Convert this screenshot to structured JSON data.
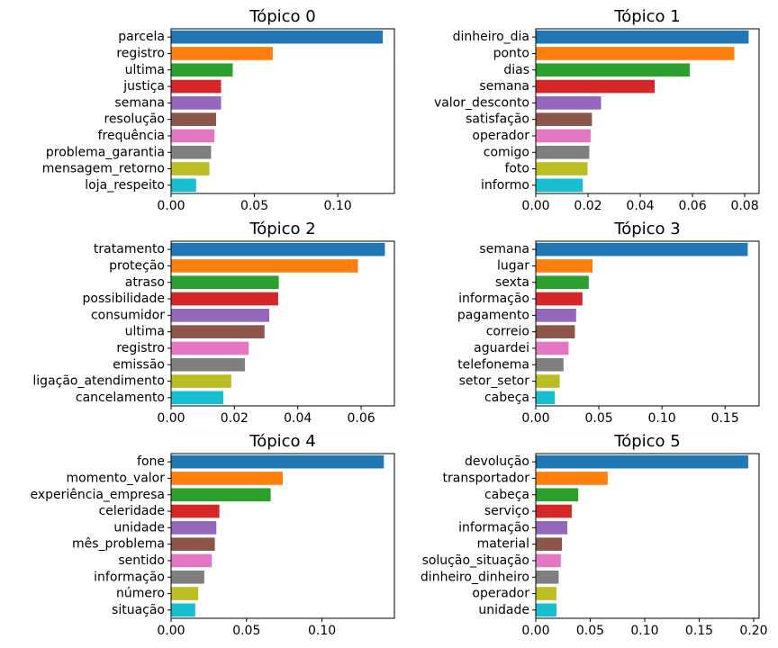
{
  "chart_data": [
    {
      "type": "bar",
      "orientation": "horizontal",
      "title": "Tópico 0",
      "categories": [
        "parcela",
        "registro",
        "ultima",
        "justiça",
        "semana",
        "resolução",
        "frequência",
        "problema_garantia",
        "mensagem_retorno",
        "loja_respeito"
      ],
      "values": [
        0.127,
        0.061,
        0.037,
        0.03,
        0.03,
        0.027,
        0.026,
        0.024,
        0.023,
        0.015
      ],
      "xlim": [
        0,
        0.134
      ],
      "xticks": [
        0.0,
        0.05,
        0.1
      ],
      "xtick_labels": [
        "0.00",
        "0.05",
        "0.10"
      ]
    },
    {
      "type": "bar",
      "orientation": "horizontal",
      "title": "Tópico 1",
      "categories": [
        "dinheiro_dia",
        "ponto",
        "dias",
        "semana",
        "valor_desconto",
        "satisfação",
        "operador",
        "comigo",
        "foto",
        "informo"
      ],
      "values": [
        0.0815,
        0.076,
        0.059,
        0.0455,
        0.025,
        0.0215,
        0.021,
        0.0205,
        0.0198,
        0.018
      ],
      "xlim": [
        0,
        0.0855
      ],
      "xticks": [
        0.0,
        0.02,
        0.04,
        0.06,
        0.08
      ],
      "xtick_labels": [
        "0.00",
        "0.02",
        "0.04",
        "0.06",
        "0.08"
      ]
    },
    {
      "type": "bar",
      "orientation": "horizontal",
      "title": "Tópico 2",
      "categories": [
        "tratamento",
        "proteção",
        "atraso",
        "possibilidade",
        "consumidor",
        "ultima",
        "registro",
        "emissão",
        "ligação_atendimento",
        "cancelamento"
      ],
      "values": [
        0.0675,
        0.059,
        0.034,
        0.0338,
        0.031,
        0.0295,
        0.0245,
        0.0233,
        0.019,
        0.0165
      ],
      "xlim": [
        0,
        0.0705
      ],
      "xticks": [
        0.0,
        0.02,
        0.04,
        0.06
      ],
      "xtick_labels": [
        "0.00",
        "0.02",
        "0.04",
        "0.06"
      ]
    },
    {
      "type": "bar",
      "orientation": "horizontal",
      "title": "Tópico 3",
      "categories": [
        "semana",
        "lugar",
        "sexta",
        "informação",
        "pagamento",
        "correio",
        "aguardei",
        "telefonema",
        "setor_setor",
        "cabeça"
      ],
      "values": [
        0.168,
        0.045,
        0.042,
        0.037,
        0.032,
        0.031,
        0.026,
        0.022,
        0.019,
        0.015
      ],
      "xlim": [
        0,
        0.177
      ],
      "xticks": [
        0.0,
        0.05,
        0.1,
        0.15
      ],
      "xtick_labels": [
        "0.00",
        "0.05",
        "0.10",
        "0.15"
      ]
    },
    {
      "type": "bar",
      "orientation": "horizontal",
      "title": "Tópico 4",
      "categories": [
        "fone",
        "momento_valor",
        "experiência_empresa",
        "celeridade",
        "unidade",
        "mês_problema",
        "sentido",
        "informação",
        "número",
        "situação"
      ],
      "values": [
        0.141,
        0.074,
        0.066,
        0.032,
        0.03,
        0.029,
        0.027,
        0.022,
        0.018,
        0.016
      ],
      "xlim": [
        0,
        0.148
      ],
      "xticks": [
        0.0,
        0.05,
        0.1
      ],
      "xtick_labels": [
        "0.00",
        "0.05",
        "0.10"
      ]
    },
    {
      "type": "bar",
      "orientation": "horizontal",
      "title": "Tópico 5",
      "categories": [
        "devolução",
        "transportador",
        "cabeça",
        "serviço",
        "informação",
        "material",
        "solução_situação",
        "dinheiro_dinheiro",
        "operador",
        "unidade"
      ],
      "values": [
        0.195,
        0.066,
        0.039,
        0.033,
        0.029,
        0.024,
        0.023,
        0.021,
        0.019,
        0.019
      ],
      "xlim": [
        0,
        0.205
      ],
      "xticks": [
        0.0,
        0.05,
        0.1,
        0.15,
        0.2
      ],
      "xtick_labels": [
        "0.00",
        "0.05",
        "0.10",
        "0.15",
        "0.20"
      ]
    }
  ],
  "palette": [
    "#1f77b4",
    "#ff7f0e",
    "#2ca02c",
    "#d62728",
    "#9467bd",
    "#8c564b",
    "#e377c2",
    "#7f7f7f",
    "#bcbd22",
    "#17becf"
  ],
  "grid": false,
  "legend": "none"
}
